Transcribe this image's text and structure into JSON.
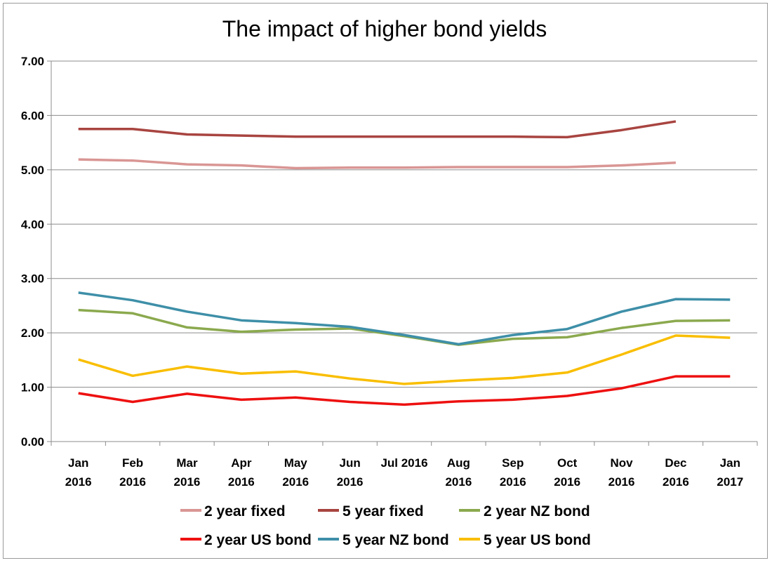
{
  "chart_data": {
    "type": "line",
    "title": "The impact of higher bond yields",
    "xlabel": "",
    "ylabel": "",
    "categories": [
      [
        "Jan",
        "2016"
      ],
      [
        "Feb",
        "2016"
      ],
      [
        "Mar",
        "2016"
      ],
      [
        "Apr",
        "2016"
      ],
      [
        "May",
        "2016"
      ],
      [
        "Jun",
        "2016"
      ],
      [
        "Jul 2016"
      ],
      [
        "Aug",
        "2016"
      ],
      [
        "Sep",
        "2016"
      ],
      [
        "Oct",
        "2016"
      ],
      [
        "Nov",
        "2016"
      ],
      [
        "Dec",
        "2016"
      ],
      [
        "Jan",
        "2017"
      ]
    ],
    "yticks": [
      "0.00",
      "1.00",
      "2.00",
      "3.00",
      "4.00",
      "5.00",
      "6.00",
      "7.00"
    ],
    "ylim": [
      0,
      7
    ],
    "grid": true,
    "legend_position": "bottom",
    "series": [
      {
        "name": "2 year fixed",
        "color": "#D99694",
        "values": [
          5.19,
          5.17,
          5.1,
          5.08,
          5.03,
          5.04,
          5.04,
          5.05,
          5.05,
          5.05,
          5.08,
          5.13,
          null
        ]
      },
      {
        "name": "5 year fixed",
        "color": "#A84440",
        "values": [
          5.75,
          5.75,
          5.65,
          5.63,
          5.61,
          5.61,
          5.61,
          5.61,
          5.61,
          5.6,
          5.73,
          5.89,
          null
        ]
      },
      {
        "name": "2 year NZ bond",
        "color": "#8BA94E",
        "values": [
          2.42,
          2.36,
          2.1,
          2.02,
          2.06,
          2.08,
          1.94,
          1.78,
          1.89,
          1.92,
          2.09,
          2.22,
          2.23
        ]
      },
      {
        "name": "2 year US bond",
        "color": "#EE1010",
        "values": [
          0.89,
          0.73,
          0.88,
          0.77,
          0.81,
          0.73,
          0.68,
          0.74,
          0.77,
          0.84,
          0.98,
          1.2,
          1.2
        ]
      },
      {
        "name": "5 year NZ bond",
        "color": "#3E8FA8",
        "values": [
          2.74,
          2.6,
          2.39,
          2.23,
          2.18,
          2.11,
          1.96,
          1.79,
          1.96,
          2.07,
          2.39,
          2.62,
          2.61
        ]
      },
      {
        "name": "5 year US bond",
        "color": "#F9BE00",
        "values": [
          1.51,
          1.21,
          1.38,
          1.25,
          1.29,
          1.16,
          1.06,
          1.12,
          1.17,
          1.27,
          1.6,
          1.95,
          1.91
        ]
      }
    ]
  }
}
